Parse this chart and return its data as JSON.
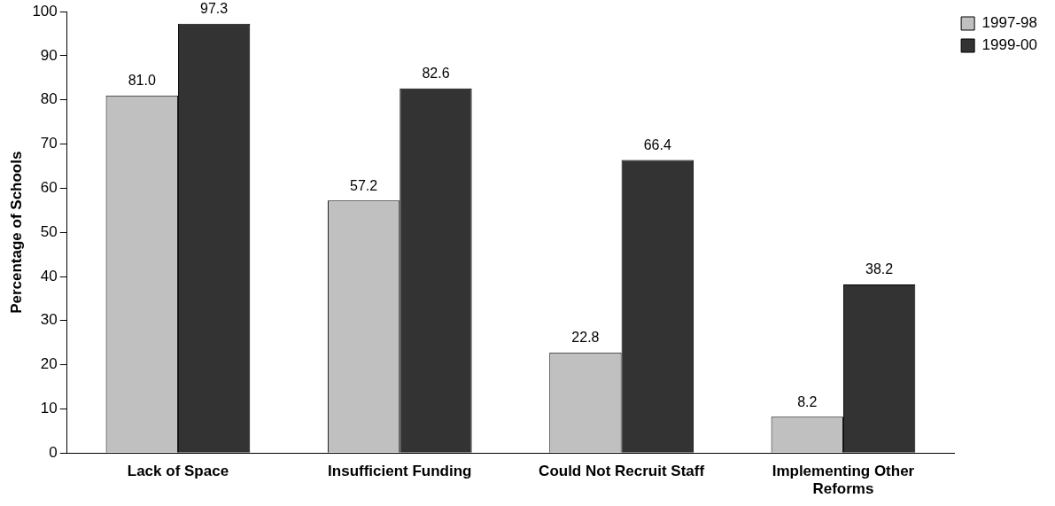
{
  "chart_data": {
    "type": "bar",
    "ylabel": "Percentage of Schools",
    "categories": [
      "Lack of Space",
      "Insufficient Funding",
      "Could Not Recruit Staff",
      "Implementing Other Reforms"
    ],
    "series": [
      {
        "name": "1997-98",
        "color": "#c0c0c0",
        "values": [
          81.0,
          57.2,
          22.8,
          8.2
        ],
        "value_labels": [
          "81.0",
          "57.2",
          "22.8",
          "8.2"
        ]
      },
      {
        "name": "1999-00",
        "color": "#333333",
        "values": [
          97.3,
          82.6,
          66.4,
          38.2
        ],
        "value_labels": [
          "97.3",
          "82.6",
          "66.4",
          "38.2"
        ]
      }
    ],
    "ylim": [
      0,
      100
    ],
    "yticks": [
      0,
      10,
      20,
      30,
      40,
      50,
      60,
      70,
      80,
      90,
      100
    ],
    "grid": false,
    "legend": "top right"
  }
}
